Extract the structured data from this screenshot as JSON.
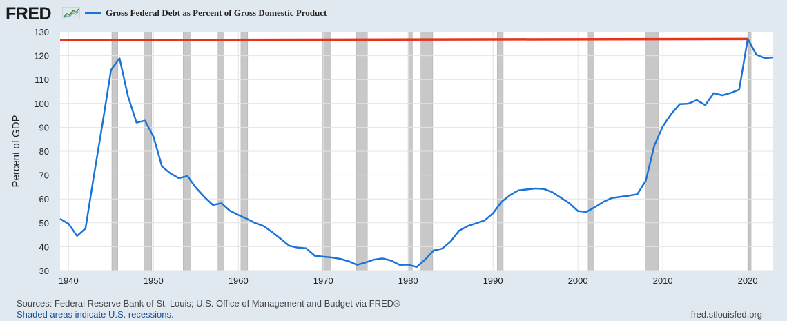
{
  "header": {
    "logo_text": "FRED",
    "legend_label": "Gross Federal Debt as Percent of Gross Domestic Product"
  },
  "footer": {
    "sources": "Sources: Federal Reserve Bank of St. Louis; U.S. Office of Management and Budget via FRED®",
    "recession_note": "Shaded areas indicate U.S. recessions.",
    "site": "fred.stlouisfed.org"
  },
  "colors": {
    "series": "#1a73d9",
    "reference_line": "#e8321a",
    "recession": "#c8c8c8",
    "plot_bg": "#ffffff",
    "page_bg": "#e1e9f0"
  },
  "chart_data": {
    "type": "line",
    "title": "",
    "xlabel": "",
    "ylabel": "Percent of GDP",
    "xlim": [
      1939,
      2023
    ],
    "ylim": [
      30,
      130
    ],
    "x_ticks": [
      1940,
      1950,
      1960,
      1970,
      1980,
      1990,
      2000,
      2010,
      2020
    ],
    "y_ticks": [
      30,
      40,
      50,
      60,
      70,
      80,
      90,
      100,
      110,
      120,
      130
    ],
    "grid": true,
    "legend": "top-left",
    "series": [
      {
        "name": "Gross Federal Debt as Percent of Gross Domestic Product",
        "x": [
          1939,
          1940,
          1941,
          1942,
          1943,
          1944,
          1945,
          1946,
          1947,
          1948,
          1949,
          1950,
          1951,
          1952,
          1953,
          1954,
          1955,
          1956,
          1957,
          1958,
          1959,
          1960,
          1961,
          1962,
          1963,
          1964,
          1965,
          1966,
          1967,
          1968,
          1969,
          1970,
          1971,
          1972,
          1973,
          1974,
          1975,
          1976,
          1977,
          1978,
          1979,
          1980,
          1981,
          1982,
          1983,
          1984,
          1985,
          1986,
          1987,
          1988,
          1989,
          1990,
          1991,
          1992,
          1993,
          1994,
          1995,
          1996,
          1997,
          1998,
          1999,
          2000,
          2001,
          2002,
          2003,
          2004,
          2005,
          2006,
          2007,
          2008,
          2009,
          2010,
          2011,
          2012,
          2013,
          2014,
          2015,
          2016,
          2017,
          2018,
          2019,
          2020,
          2021,
          2022,
          2023
        ],
        "y": [
          51.7,
          49.6,
          44.5,
          47.7,
          70.1,
          91.6,
          114.0,
          118.9,
          103.0,
          92.0,
          92.8,
          86.1,
          73.6,
          70.7,
          68.7,
          69.6,
          64.7,
          60.8,
          57.5,
          58.2,
          55.1,
          53.3,
          51.7,
          49.9,
          48.6,
          46.1,
          43.3,
          40.4,
          39.6,
          39.3,
          36.2,
          35.8,
          35.5,
          34.9,
          33.9,
          32.4,
          33.4,
          34.6,
          35.1,
          34.2,
          32.4,
          32.5,
          31.5,
          34.6,
          38.4,
          39.2,
          42.2,
          46.7,
          48.6,
          49.8,
          51.0,
          54.0,
          58.8,
          61.6,
          63.6,
          64.0,
          64.4,
          64.2,
          62.8,
          60.5,
          58.2,
          54.9,
          54.6,
          56.6,
          58.8,
          60.4,
          60.9,
          61.4,
          62.0,
          67.7,
          82.4,
          90.4,
          95.6,
          99.7,
          99.9,
          101.4,
          99.3,
          104.3,
          103.4,
          104.4,
          105.8,
          127.0,
          120.5,
          119.0,
          119.3
        ]
      }
    ],
    "reference_line": {
      "type": "horizontal",
      "x": [
        1939,
        2020
      ],
      "y": [
        126.5,
        127.0
      ]
    },
    "recessions": [
      [
        1945.1,
        1945.8
      ],
      [
        1948.9,
        1949.8
      ],
      [
        1953.5,
        1954.4
      ],
      [
        1957.6,
        1958.3
      ],
      [
        1960.3,
        1961.1
      ],
      [
        1969.9,
        1970.9
      ],
      [
        1973.9,
        1975.2
      ],
      [
        1980.0,
        1980.5
      ],
      [
        1981.5,
        1982.9
      ],
      [
        1990.5,
        1991.2
      ],
      [
        2001.2,
        2001.9
      ],
      [
        2007.9,
        2009.5
      ],
      [
        2020.1,
        2020.4
      ]
    ]
  }
}
